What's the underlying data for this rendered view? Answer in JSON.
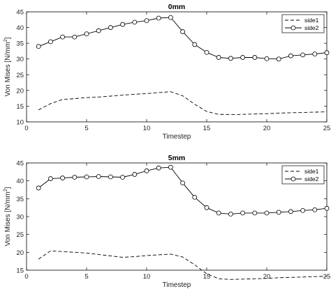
{
  "chart_data": [
    {
      "type": "line",
      "title": "0mm",
      "xlabel": "Timestep",
      "ylabel": "Von Mises [N/mm",
      "ylabel_sup": "2",
      "ylabel_tail": "]",
      "xlim": [
        0,
        25
      ],
      "ylim": [
        10,
        45
      ],
      "xticks": [
        "0",
        "5",
        "10",
        "15",
        "20",
        "25"
      ],
      "yticks": [
        "10",
        "15",
        "20",
        "25",
        "30",
        "35",
        "40",
        "45"
      ],
      "legend_position": "top-right",
      "series": [
        {
          "name": "side1",
          "style": "dashed",
          "x": [
            1,
            2,
            3,
            4,
            5,
            6,
            7,
            8,
            9,
            10,
            11,
            12,
            13,
            14,
            15,
            16,
            17,
            18,
            19,
            20,
            21,
            22,
            23,
            24,
            25
          ],
          "values": [
            13.8,
            15.8,
            17.1,
            17.4,
            17.7,
            17.9,
            18.2,
            18.5,
            18.8,
            19.0,
            19.3,
            19.6,
            18.3,
            15.6,
            13.3,
            12.4,
            12.3,
            12.4,
            12.5,
            12.6,
            12.8,
            12.9,
            13.0,
            13.1,
            13.2
          ]
        },
        {
          "name": "side2",
          "style": "solid-circle",
          "x": [
            1,
            2,
            3,
            4,
            5,
            6,
            7,
            8,
            9,
            10,
            11,
            12,
            13,
            14,
            15,
            16,
            17,
            18,
            19,
            20,
            21,
            22,
            23,
            24,
            25
          ],
          "values": [
            34.0,
            35.5,
            37.0,
            37.0,
            38.0,
            39.0,
            40.0,
            41.0,
            41.7,
            42.2,
            43.0,
            43.2,
            38.7,
            34.6,
            32.1,
            30.5,
            30.2,
            30.5,
            30.5,
            30.1,
            30.0,
            31.0,
            31.3,
            31.6,
            32.0
          ]
        }
      ]
    },
    {
      "type": "line",
      "title": "5mm",
      "xlabel": "Timestep",
      "ylabel": "Von Mises [N/mm",
      "ylabel_sup": "2",
      "ylabel_tail": "]",
      "xlim": [
        0,
        25
      ],
      "ylim": [
        15,
        45
      ],
      "xticks": [
        "0",
        "5",
        "10",
        "15",
        "20",
        "25"
      ],
      "yticks": [
        "15",
        "20",
        "25",
        "30",
        "35",
        "40",
        "45"
      ],
      "legend_position": "top-right",
      "series": [
        {
          "name": "side1",
          "style": "dashed",
          "x": [
            1,
            2,
            3,
            4,
            5,
            6,
            7,
            8,
            9,
            10,
            11,
            12,
            13,
            14,
            15,
            16,
            17,
            18,
            19,
            20,
            21,
            22,
            23,
            24,
            25
          ],
          "values": [
            18.1,
            20.4,
            20.2,
            20.0,
            19.8,
            19.4,
            19.0,
            18.6,
            18.8,
            19.1,
            19.3,
            19.5,
            18.7,
            16.5,
            14.0,
            12.6,
            12.4,
            12.5,
            12.6,
            12.7,
            12.9,
            13.0,
            13.1,
            13.2,
            13.3
          ]
        },
        {
          "name": "side2",
          "style": "solid-circle",
          "x": [
            1,
            2,
            3,
            4,
            5,
            6,
            7,
            8,
            9,
            10,
            11,
            12,
            13,
            14,
            15,
            16,
            17,
            18,
            19,
            20,
            21,
            22,
            23,
            24,
            25
          ],
          "values": [
            38.0,
            40.6,
            40.8,
            41.0,
            41.1,
            41.2,
            41.1,
            41.0,
            41.8,
            42.8,
            43.6,
            43.8,
            39.4,
            35.4,
            32.5,
            31.0,
            30.7,
            31.0,
            31.0,
            31.0,
            31.2,
            31.4,
            31.7,
            31.9,
            32.3
          ]
        }
      ]
    }
  ]
}
